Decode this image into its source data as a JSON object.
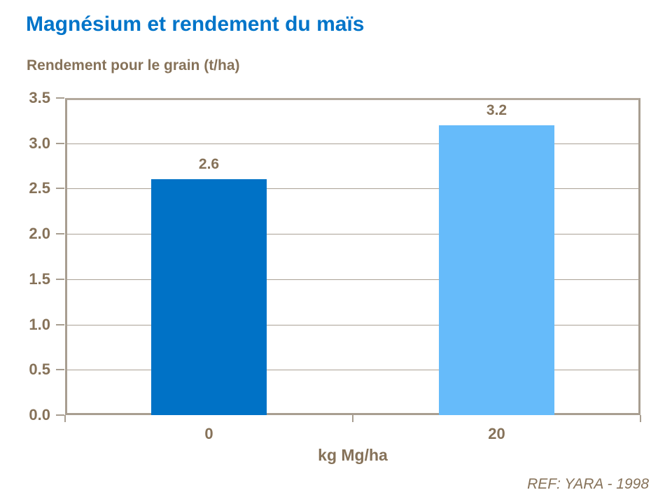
{
  "page": {
    "title": "Magnésium et rendement du maïs",
    "reference": "REF: YARA - 1998"
  },
  "colors": {
    "title_blue": "#0074C9",
    "text_brown": "#867259",
    "axis_frame": "#A89E91",
    "gridline": "#ABA195",
    "bar_dark_blue": "#0072C6",
    "bar_light_blue": "#66BBFA"
  },
  "chart_data": {
    "type": "bar",
    "title": "Magnésium et rendement du maïs",
    "ylabel": "Rendement pour le grain (t/ha)",
    "xlabel": "kg Mg/ha",
    "categories": [
      "0",
      "20"
    ],
    "values": [
      2.6,
      3.2
    ],
    "value_labels": [
      "2.6",
      "3.2"
    ],
    "bar_colors": [
      "#0072C6",
      "#66BBFA"
    ],
    "ylim": [
      0,
      3.5
    ],
    "yticks": [
      "0.0",
      "0.5",
      "1.0",
      "1.5",
      "2.0",
      "2.5",
      "3.0",
      "3.5"
    ],
    "grid": "horizontal",
    "legend": "none",
    "reference": "REF: YARA - 1998"
  }
}
